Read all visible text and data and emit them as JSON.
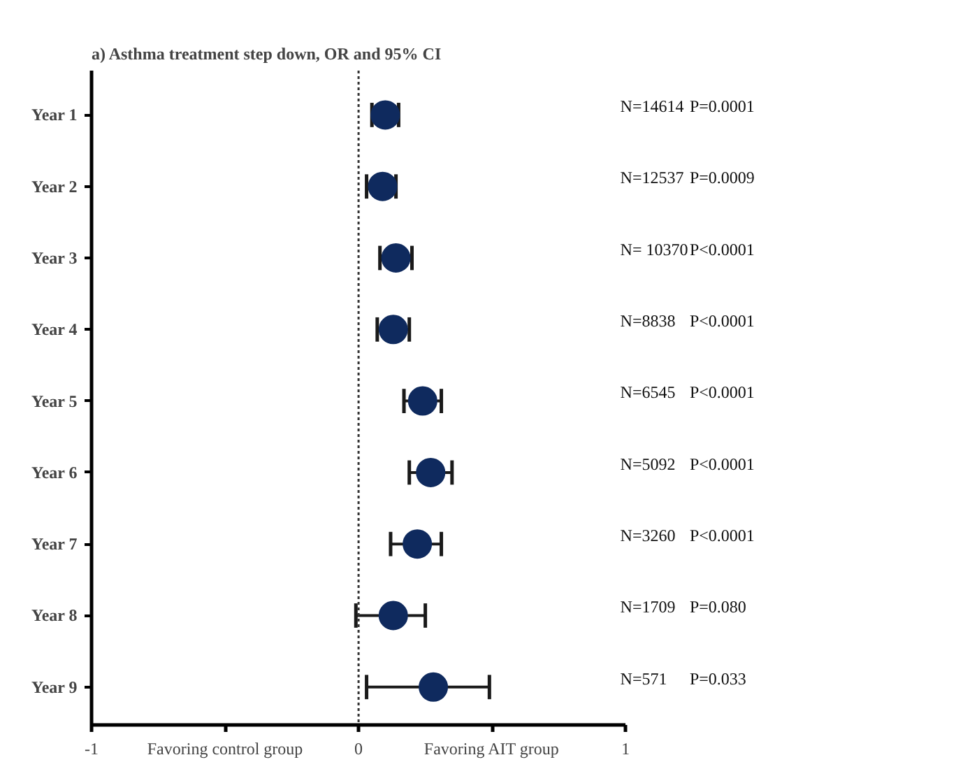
{
  "chart_data": {
    "type": "scatter",
    "title": "a) Asthma treatment step down, OR and 95% CI",
    "orientation": "horizontal",
    "categories": [
      "Year 1",
      "Year 2",
      "Year 3",
      "Year 4",
      "Year 5",
      "Year 6",
      "Year 7",
      "Year 8",
      "Year 9"
    ],
    "color": "#0f2a5e",
    "values": [
      0.1,
      0.09,
      0.14,
      0.13,
      0.24,
      0.27,
      0.22,
      0.13,
      0.28
    ],
    "errors": [
      [
        0.05,
        0.15
      ],
      [
        0.03,
        0.14
      ],
      [
        0.08,
        0.2
      ],
      [
        0.07,
        0.19
      ],
      [
        0.17,
        0.31
      ],
      [
        0.19,
        0.35
      ],
      [
        0.12,
        0.31
      ],
      [
        -0.01,
        0.25
      ],
      [
        0.03,
        0.49
      ]
    ],
    "xlim": [
      -1,
      1
    ],
    "xticks": [
      -1,
      {
        "value": -0.5,
        "label": "Favoring control group"
      },
      0,
      {
        "value": 0.5,
        "label": "Favoring AIT group"
      },
      1
    ],
    "ref_lines": [
      {
        "axis": "x",
        "value": 0,
        "label": null,
        "color": "#333333",
        "line_style": "dotted"
      }
    ],
    "annotations": [
      "N=14614",
      "P=0.0001",
      "N=12537",
      "P=0.0009",
      "N= 10370",
      "P<0.0001",
      "N=8838",
      "P<0.0001",
      "N=6545",
      "P<0.0001",
      "N=5092",
      "P<0.0001",
      "N=3260",
      "P<0.0001",
      "N=1709",
      "P=0.080",
      "N=571",
      "P=0.033"
    ],
    "grid": false,
    "marker": "circle"
  }
}
